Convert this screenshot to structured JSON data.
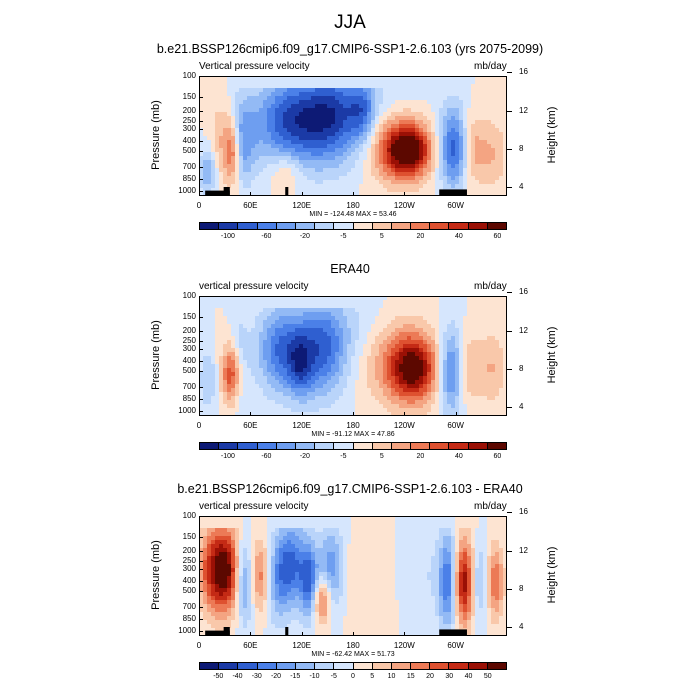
{
  "title": "JJA",
  "colors": [
    "#0d1a75",
    "#1b3aa6",
    "#2f5fd0",
    "#4b80e8",
    "#6e9ef0",
    "#93baf5",
    "#b9d4fa",
    "#d6e6fd",
    "#fde4d2",
    "#f9c8aa",
    "#f4a482",
    "#ec7a56",
    "#de5130",
    "#c42a15",
    "#9a1005",
    "#5c0800"
  ],
  "y_ticks": [
    "100",
    "150",
    "200",
    "250",
    "300",
    "400",
    "500",
    "700",
    "850",
    "1000"
  ],
  "h_ticks": [
    "16",
    "12",
    "8",
    "4"
  ],
  "x_ticks": [
    "0",
    "60E",
    "120E",
    "180",
    "120W",
    "60W"
  ],
  "ylabel": "Pressure (mb)",
  "hlabel": "Height (km)",
  "panels": [
    {
      "title": "b.e21.BSSP126cmip6.f09_g17.CMIP6-SSP1-2.6.103 (yrs 2075-2099)",
      "left_string": "Vertical pressure velocity",
      "right_string": "mb/day",
      "minmax": "MIN = -124.48  MAX = 53.46",
      "cb_labels": [
        "-100",
        "-60",
        "-20",
        "-5",
        "5",
        "20",
        "40",
        "60"
      ],
      "show_land": true
    },
    {
      "title": "ERA40",
      "left_string": "vertical pressure velocity",
      "right_string": "mb/day",
      "minmax": "MIN = -91.12  MAX = 47.86",
      "cb_labels": [
        "-100",
        "-60",
        "-20",
        "-5",
        "5",
        "20",
        "40",
        "60"
      ],
      "show_land": false
    },
    {
      "title": "b.e21.BSSP126cmip6.f09_g17.CMIP6-SSP1-2.6.103 - ERA40",
      "left_string": "vertical pressure velocity",
      "right_string": "mb/day",
      "minmax": "MIN = -62.42  MAX = 51.73",
      "cb_labels": [
        "-50",
        "-40",
        "-30",
        "-20",
        "-15",
        "-10",
        "-5",
        "0",
        "5",
        "10",
        "15",
        "20",
        "30",
        "40",
        "50"
      ],
      "show_land": true
    }
  ],
  "chart_data": [
    {
      "type": "heatmap",
      "title": "b.e21.BSSP126cmip6.f09_g17.CMIP6-SSP1-2.6.103 (yrs 2075-2099)",
      "xlabel": "",
      "ylabel": "Pressure (mb)",
      "x_ticks": [
        "0",
        "60E",
        "120E",
        "180",
        "120W",
        "60W"
      ],
      "y_ticks_mb": [
        100,
        150,
        200,
        250,
        300,
        400,
        500,
        700,
        850,
        1000
      ],
      "right_axis": "Height (km)",
      "right_ticks_km": [
        16,
        12,
        8,
        4
      ],
      "units": "mb/day",
      "min": -124.48,
      "max": 53.46,
      "levels": [
        -100,
        -80,
        -60,
        -40,
        -20,
        -10,
        -5,
        0,
        5,
        10,
        20,
        30,
        40,
        50,
        60
      ]
    },
    {
      "type": "heatmap",
      "title": "ERA40",
      "xlabel": "",
      "ylabel": "Pressure (mb)",
      "x_ticks": [
        "0",
        "60E",
        "120E",
        "180",
        "120W",
        "60W"
      ],
      "y_ticks_mb": [
        100,
        150,
        200,
        250,
        300,
        400,
        500,
        700,
        850,
        1000
      ],
      "right_axis": "Height (km)",
      "right_ticks_km": [
        16,
        12,
        8,
        4
      ],
      "units": "mb/day",
      "min": -91.12,
      "max": 47.86,
      "levels": [
        -100,
        -80,
        -60,
        -40,
        -20,
        -10,
        -5,
        0,
        5,
        10,
        20,
        30,
        40,
        50,
        60
      ]
    },
    {
      "type": "heatmap",
      "title": "b.e21.BSSP126cmip6.f09_g17.CMIP6-SSP1-2.6.103 - ERA40",
      "xlabel": "",
      "ylabel": "Pressure (mb)",
      "x_ticks": [
        "0",
        "60E",
        "120E",
        "180",
        "120W",
        "60W"
      ],
      "y_ticks_mb": [
        100,
        150,
        200,
        250,
        300,
        400,
        500,
        700,
        850,
        1000
      ],
      "right_axis": "Height (km)",
      "right_ticks_km": [
        16,
        12,
        8,
        4
      ],
      "units": "mb/day",
      "min": -62.42,
      "max": 51.73,
      "levels": [
        -50,
        -40,
        -30,
        -20,
        -15,
        -10,
        -5,
        0,
        5,
        10,
        15,
        20,
        30,
        40,
        50
      ]
    }
  ]
}
